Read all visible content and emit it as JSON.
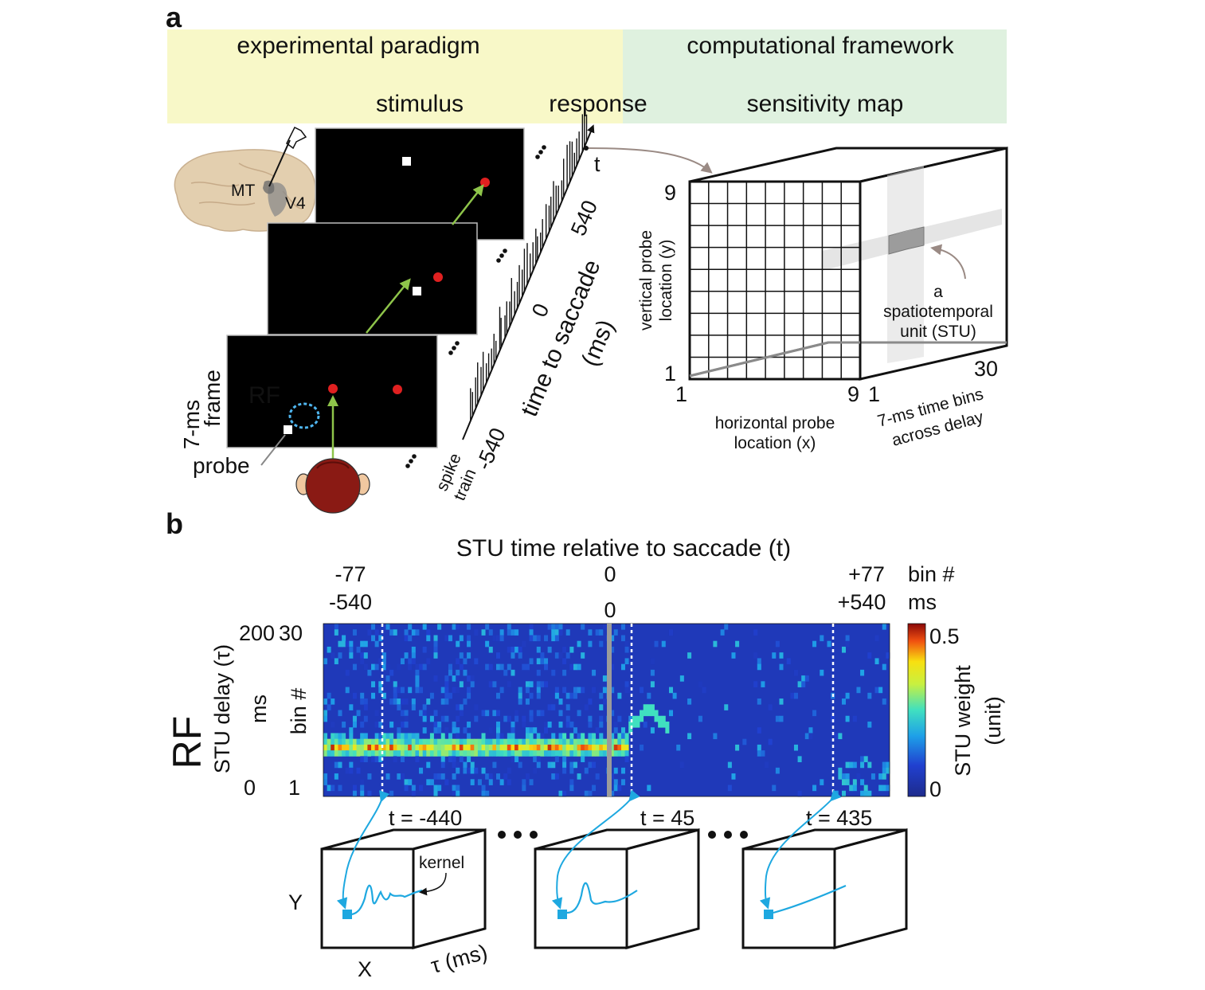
{
  "panel_a": {
    "letter": "a",
    "banner": {
      "left_title": "experimental paradigm",
      "right_title": "computational framework",
      "stimulus": "stimulus",
      "response": "response",
      "sensitivity_map": "sensitivity map",
      "left_color": "#f8f8c8",
      "right_color": "#dff1df"
    },
    "brain": {
      "mt": "MT",
      "v4": "V4"
    },
    "frames": {
      "frame_label_line1": "7-ms",
      "frame_label_line2": "frame",
      "rf_label": "RF",
      "probe_label": "probe",
      "rf_color": "#4a8fc8",
      "target_color": "#e02020",
      "arrow_color": "#8ec44a"
    },
    "spike_axis": {
      "spike_line1": "spike",
      "spike_line2": "train",
      "tick_start": "-540",
      "tick_zero": "0",
      "tick_end": "540",
      "t_label": "t",
      "axis_line1": "time to saccade",
      "axis_line2": "(ms)"
    },
    "cube": {
      "y_top": "9",
      "y_bottom": "1",
      "x_left": "1",
      "x_right": "9",
      "depth_start": "1",
      "depth_end": "30",
      "y_title_line1": "vertical probe",
      "y_title_line2": "location (y)",
      "x_title_line1": "horizontal probe",
      "x_title_line2": "location (x)",
      "depth_title_line1": "7-ms time bins",
      "depth_title_line2": "across delay",
      "stu_line1": "a",
      "stu_line2": "spatiotemporal",
      "stu_line3": "unit (STU)"
    }
  },
  "panel_b": {
    "letter": "b",
    "rf_label": "RF",
    "rf_color": "#2a80c0",
    "top_title": "STU time relative to saccade (t)",
    "top_ticks_bin": [
      "-77",
      "0",
      "+77"
    ],
    "top_ticks_ms": [
      "-540",
      "0",
      "+540"
    ],
    "corner_bin": "bin #",
    "corner_ms": "ms",
    "y_ms_ticks": [
      "200",
      "0"
    ],
    "y_bin_ticks": [
      "30",
      "1"
    ],
    "y_title": "STU delay (τ)",
    "y_ms_title": "ms",
    "y_bin_title": "bin #",
    "colorbar": {
      "max_label": "0.5",
      "min_label": "0",
      "title_line1": "STU weight",
      "title_line2": "(unit)"
    },
    "markers": [
      "t = -440",
      "t = 45",
      "t = 435"
    ],
    "kernel_label": "kernel",
    "axis_y": "Y",
    "axis_x": "X",
    "axis_tau": "τ (ms)",
    "cyan_color": "#1ea8e0"
  },
  "chart_data": {
    "type": "heatmap",
    "title": "STU time relative to saccade (t)",
    "xlabel": "STU time relative to saccade (t)",
    "ylabel": "STU delay (τ)",
    "x_range_ms": [
      -540,
      540
    ],
    "x_range_bin": [
      -77,
      77
    ],
    "y_range_ms": [
      0,
      200
    ],
    "y_range_bin": [
      1,
      30
    ],
    "colorbar_range": [
      0,
      0.5
    ],
    "colorbar_label": "STU weight (unit)",
    "colormap": "jet",
    "marked_times": [
      -440,
      45,
      435
    ],
    "saccade_time": 0,
    "rows": 30,
    "cols": 154
  }
}
